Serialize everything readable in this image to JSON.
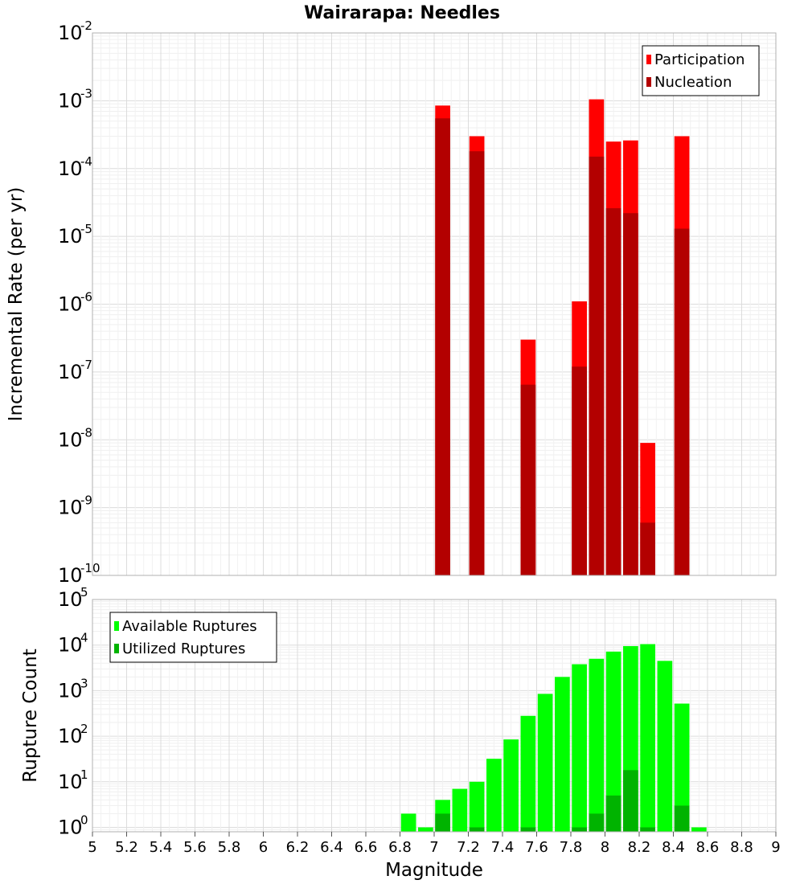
{
  "chart_data": {
    "type": "bar",
    "title": "Wairarapa: Needles",
    "xlabel": "Magnitude",
    "xlim": [
      5,
      9
    ],
    "x_ticks": [
      "5",
      "5.2",
      "5.4",
      "5.6",
      "5.8",
      "6",
      "6.2",
      "6.4",
      "6.6",
      "6.8",
      "7",
      "7.2",
      "7.4",
      "7.6",
      "7.8",
      "8",
      "8.2",
      "8.4",
      "8.6",
      "8.8",
      "9"
    ],
    "panels": [
      {
        "id": "rate",
        "ylabel": "Incremental Rate (per yr)",
        "yscale": "log",
        "ylim": [
          1e-10,
          0.01
        ],
        "y_ticks": [
          {
            "base": "10",
            "exp": "-10"
          },
          {
            "base": "10",
            "exp": "-9"
          },
          {
            "base": "10",
            "exp": "-8"
          },
          {
            "base": "10",
            "exp": "-7"
          },
          {
            "base": "10",
            "exp": "-6"
          },
          {
            "base": "10",
            "exp": "-5"
          },
          {
            "base": "10",
            "exp": "-4"
          },
          {
            "base": "10",
            "exp": "-3"
          },
          {
            "base": "10",
            "exp": "-2"
          }
        ],
        "legend_position": "top-right",
        "series": [
          {
            "name": "Participation",
            "color": "#ff0000",
            "points": [
              [
                7.05,
                0.00085
              ],
              [
                7.25,
                0.0003
              ],
              [
                7.55,
                3e-07
              ],
              [
                7.85,
                1.1e-06
              ],
              [
                7.95,
                0.00105
              ],
              [
                8.05,
                0.00025
              ],
              [
                8.15,
                0.00026
              ],
              [
                8.25,
                9e-09
              ],
              [
                8.45,
                0.0003
              ]
            ]
          },
          {
            "name": "Nucleation",
            "color": "#b30000",
            "points": [
              [
                7.05,
                0.00055
              ],
              [
                7.25,
                0.00018
              ],
              [
                7.55,
                6.5e-08
              ],
              [
                7.85,
                1.2e-07
              ],
              [
                7.95,
                0.00015
              ],
              [
                8.05,
                2.6e-05
              ],
              [
                8.15,
                2.2e-05
              ],
              [
                8.25,
                6e-10
              ],
              [
                8.45,
                1.3e-05
              ]
            ]
          }
        ]
      },
      {
        "id": "count",
        "ylabel": "Rupture Count",
        "yscale": "log",
        "ylim": [
          0.8,
          100000.0
        ],
        "y_ticks": [
          {
            "base": "10",
            "exp": "0"
          },
          {
            "base": "10",
            "exp": "1"
          },
          {
            "base": "10",
            "exp": "2"
          },
          {
            "base": "10",
            "exp": "3"
          },
          {
            "base": "10",
            "exp": "4"
          },
          {
            "base": "10",
            "exp": "5"
          }
        ],
        "legend_position": "top-left",
        "series": [
          {
            "name": "Available Ruptures",
            "color": "#00ff00",
            "points": [
              [
                6.85,
                2
              ],
              [
                6.95,
                1
              ],
              [
                7.05,
                4
              ],
              [
                7.15,
                7
              ],
              [
                7.25,
                10
              ],
              [
                7.35,
                32
              ],
              [
                7.45,
                85
              ],
              [
                7.55,
                280
              ],
              [
                7.65,
                850
              ],
              [
                7.75,
                2000
              ],
              [
                7.85,
                3800
              ],
              [
                7.95,
                5000
              ],
              [
                8.05,
                7200
              ],
              [
                8.15,
                9500
              ],
              [
                8.25,
                10500
              ],
              [
                8.35,
                4500
              ],
              [
                8.45,
                520
              ],
              [
                8.55,
                1
              ]
            ]
          },
          {
            "name": "Utilized Ruptures",
            "color": "#00b300",
            "points": [
              [
                7.05,
                2
              ],
              [
                7.25,
                1
              ],
              [
                7.55,
                1
              ],
              [
                7.85,
                1
              ],
              [
                7.95,
                2
              ],
              [
                8.05,
                5
              ],
              [
                8.15,
                18
              ],
              [
                8.25,
                1
              ],
              [
                8.45,
                3
              ]
            ]
          }
        ]
      }
    ]
  }
}
